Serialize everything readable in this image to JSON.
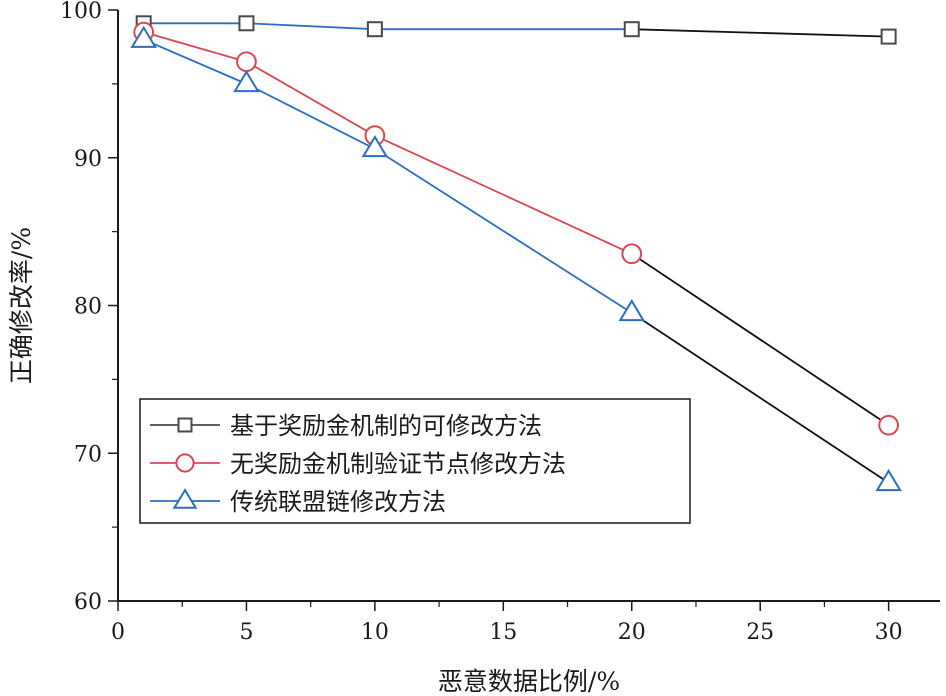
{
  "chart_data": {
    "type": "line",
    "xlabel": "恶意数据比例/%",
    "ylabel": "正确修改率/%",
    "xlim": [
      0,
      32
    ],
    "ylim": [
      60,
      100
    ],
    "x_ticks": [
      0,
      5,
      10,
      15,
      20,
      25,
      30
    ],
    "y_ticks": [
      60,
      70,
      80,
      90,
      100
    ],
    "legend_position": "lower-left",
    "grid": false,
    "series": [
      {
        "name": "基于奖励金机制的可修改方法",
        "color": "#4a4a4a",
        "marker": "square",
        "x": [
          1,
          5,
          10,
          20,
          30
        ],
        "y": [
          99.1,
          99.1,
          98.7,
          98.7,
          98.2
        ]
      },
      {
        "name": "无奖励金机制验证节点修改方法",
        "color": "#d9484f",
        "marker": "circle",
        "x": [
          1,
          5,
          10,
          20,
          30
        ],
        "y": [
          98.5,
          96.5,
          91.5,
          83.5,
          71.9
        ]
      },
      {
        "name": "传统联盟链修改方法",
        "color": "#2a6fc0",
        "marker": "triangle",
        "x": [
          1,
          5,
          10,
          20,
          30
        ],
        "y": [
          98.0,
          95.0,
          90.6,
          79.5,
          68.0
        ]
      }
    ]
  }
}
